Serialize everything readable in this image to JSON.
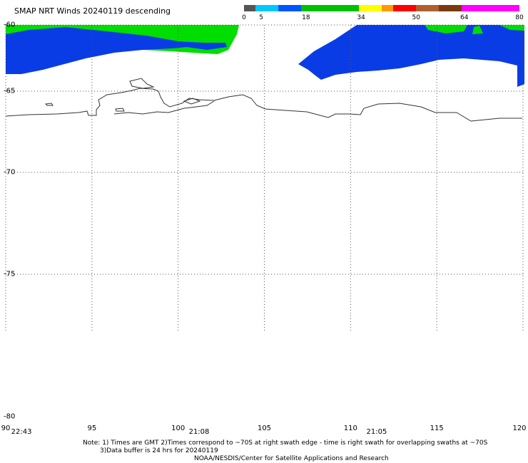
{
  "title": "SMAP NRT Winds  20240119 descending",
  "colorbar": {
    "labels": [
      "0",
      "5",
      "18",
      "34",
      "50",
      "64",
      "80"
    ],
    "stops": [
      {
        "value": 0,
        "color": "#555555"
      },
      {
        "value": 3,
        "color": "#999999"
      },
      {
        "value": 5,
        "color": "#00c8ff"
      },
      {
        "value": 11,
        "color": "#0055ff"
      },
      {
        "value": 18,
        "color": "#00c000"
      },
      {
        "value": 34,
        "color": "#ffff00"
      },
      {
        "value": 40,
        "color": "#ff9900"
      },
      {
        "value": 45,
        "color": "#ff0000"
      },
      {
        "value": 50,
        "color": "#b06030"
      },
      {
        "value": 57,
        "color": "#7a3a10"
      },
      {
        "value": 64,
        "color": "#ff00ff"
      },
      {
        "value": 80,
        "color": "#a000d0"
      }
    ]
  },
  "map": {
    "lon_range": [
      90,
      120
    ],
    "lat_range": [
      -80,
      -60
    ],
    "lat_labels": [
      "-60",
      "-65",
      "-70",
      "-75",
      "-80"
    ],
    "lon_labels": [
      "90",
      "95",
      "100",
      "105",
      "110",
      "115",
      "120"
    ],
    "time_labels": [
      {
        "text": "22:43",
        "lon": 90.5
      },
      {
        "text": "21:08",
        "lon": 100.8
      },
      {
        "text": "21:05",
        "lon": 111.1
      }
    ]
  },
  "notes": {
    "line1": "Note: 1) Times are GMT 2)Times correspond to ~70S at right swath edge - time is right swath for overlapping swaths at ~70S",
    "line2": "3)Data buffer is 24 hrs for 20240119",
    "line3": "NOAA/NESDIS/Center for Satellite Applications and Research"
  },
  "colors": {
    "coast": "#333333",
    "grid": "#555555",
    "wind_low": "#0044ee",
    "wind_mid": "#00dd00"
  }
}
